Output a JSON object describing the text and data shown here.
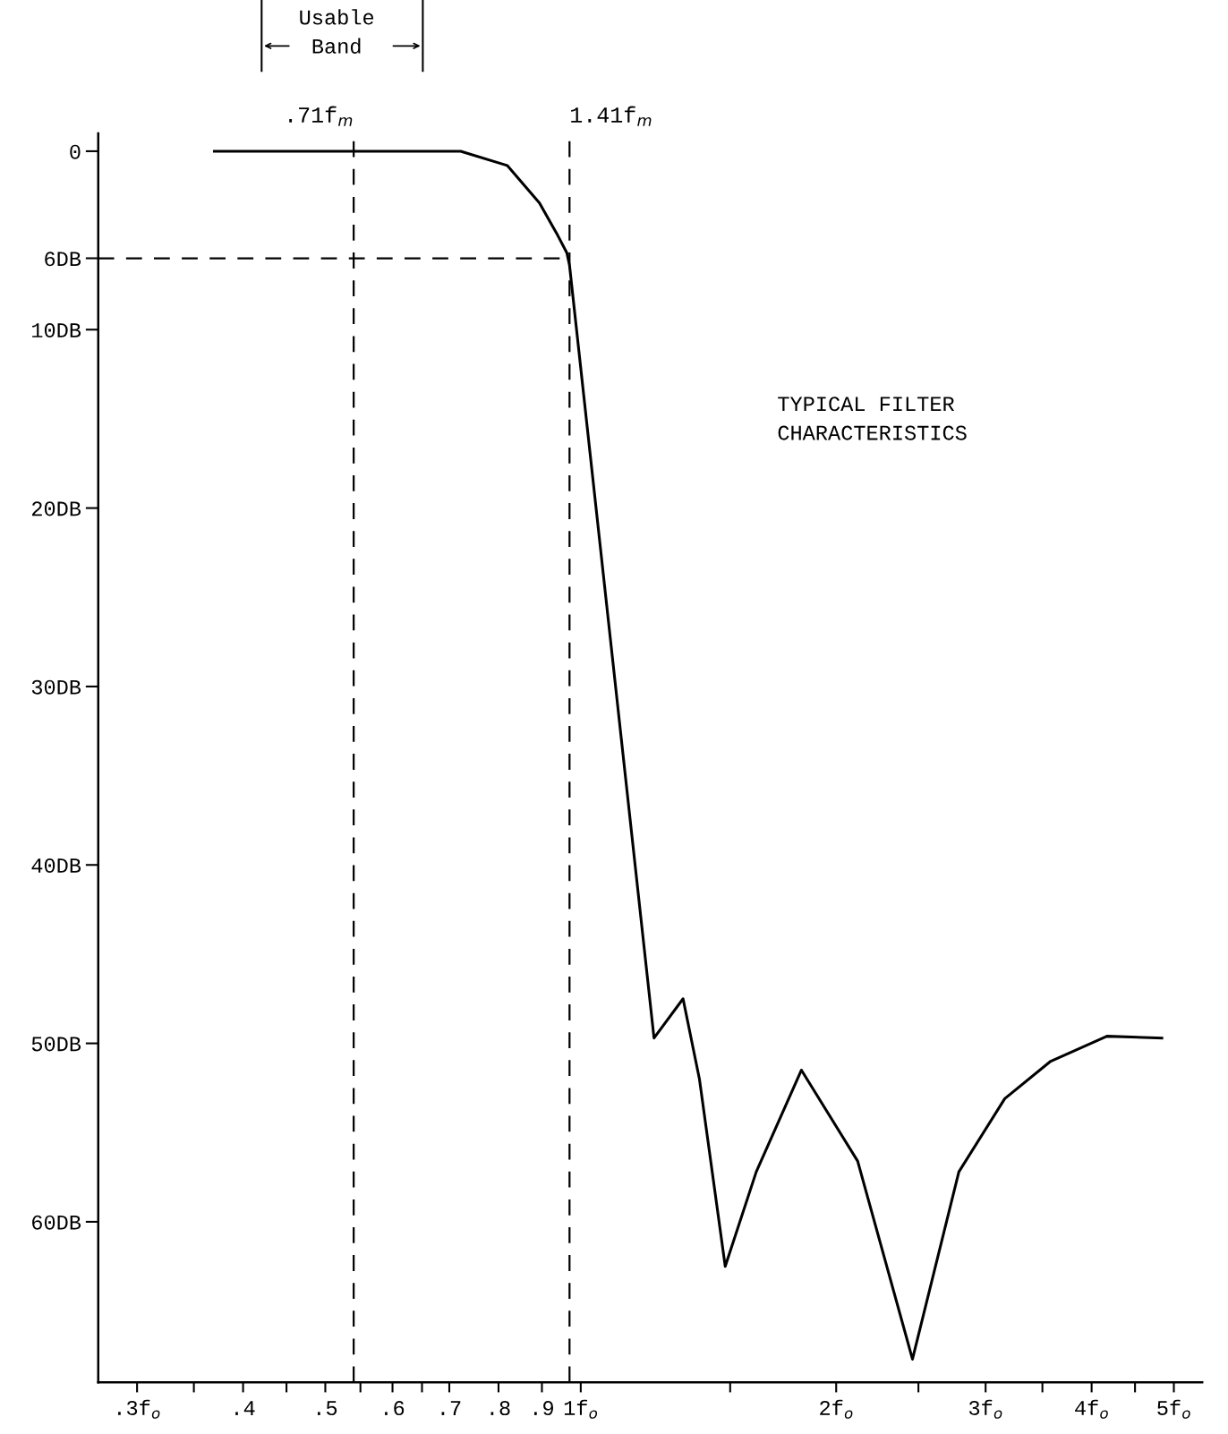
{
  "chart_data": {
    "type": "line",
    "x": [
      0.37,
      0.535,
      0.722,
      0.819,
      0.894,
      0.939,
      0.963,
      0.97,
      1.22,
      1.32,
      1.38,
      1.48,
      1.61,
      1.82,
      2.12,
      2.46,
      2.79,
      3.16,
      3.58,
      4.17,
      4.84
    ],
    "series": [
      {
        "color": "#000000",
        "values": [
          0,
          0,
          0,
          0.8,
          2.9,
          4.7,
          5.7,
          6.4,
          49.7,
          47.5,
          52,
          62.5,
          57.2,
          51.5,
          56.6,
          67.7,
          57.2,
          53.1,
          51.0,
          49.6,
          49.7
        ]
      }
    ],
    "log": "x",
    "xlim": [
      0.27,
      5.4
    ],
    "xticks": [
      {
        "value": 0.3,
        "label": ".3f$_{o}$"
      },
      {
        "value": 0.35,
        "label": null
      },
      {
        "value": 0.4,
        "label": ".4"
      },
      {
        "value": 0.45,
        "label": null
      },
      {
        "value": 0.5,
        "label": ".5"
      },
      {
        "value": 0.55,
        "label": null
      },
      {
        "value": 0.6,
        "label": ".6"
      },
      {
        "value": 0.65,
        "label": null
      },
      {
        "value": 0.7,
        "label": ".7"
      },
      {
        "value": 0.8,
        "label": ".8"
      },
      {
        "value": 0.9,
        "label": ".9"
      },
      {
        "value": 1,
        "label": "1f$_{o}$"
      },
      {
        "value": 1.5,
        "label": null
      },
      {
        "value": 2,
        "label": "2f$_{o}$"
      },
      {
        "value": 2.5,
        "label": null
      },
      {
        "value": 3,
        "label": "3f$_{o}$"
      },
      {
        "value": 3.5,
        "label": null
      },
      {
        "value": 4,
        "label": "4f$_{o}$"
      },
      {
        "value": 4.5,
        "label": null
      },
      {
        "value": 5,
        "label": "5f$_{o}$"
      }
    ],
    "ylim": [
      69,
      -1
    ],
    "yticks": [
      0,
      {
        "value": 6,
        "label": "6DB"
      },
      {
        "value": 10,
        "label": "10DB"
      },
      {
        "value": 20,
        "label": "20DB"
      },
      {
        "value": 30,
        "label": "30DB"
      },
      {
        "value": 40,
        "label": "40DB"
      },
      {
        "value": 50,
        "label": "50DB"
      },
      {
        "value": 60,
        "label": "60DB"
      }
    ],
    "ref_lines": [
      {
        "axis": "x",
        "value": 0.54,
        "label": ".71f$_{m}$",
        "line_style": "dashed",
        "color": "#000000"
      },
      {
        "axis": "x",
        "value": 0.97,
        "label": "1.41f$_{m}$",
        "line_style": "dashed",
        "color": "#000000"
      },
      {
        "axis": "y",
        "value": 6,
        "line_style": "dashed",
        "color": "#000000"
      }
    ],
    "annotations": [
      "Usable\nBand",
      "TYPICAL FILTER\nCHARACTERISTICS"
    ],
    "grid": false,
    "legend": false,
    "marker": "none",
    "line_style": "solid"
  }
}
